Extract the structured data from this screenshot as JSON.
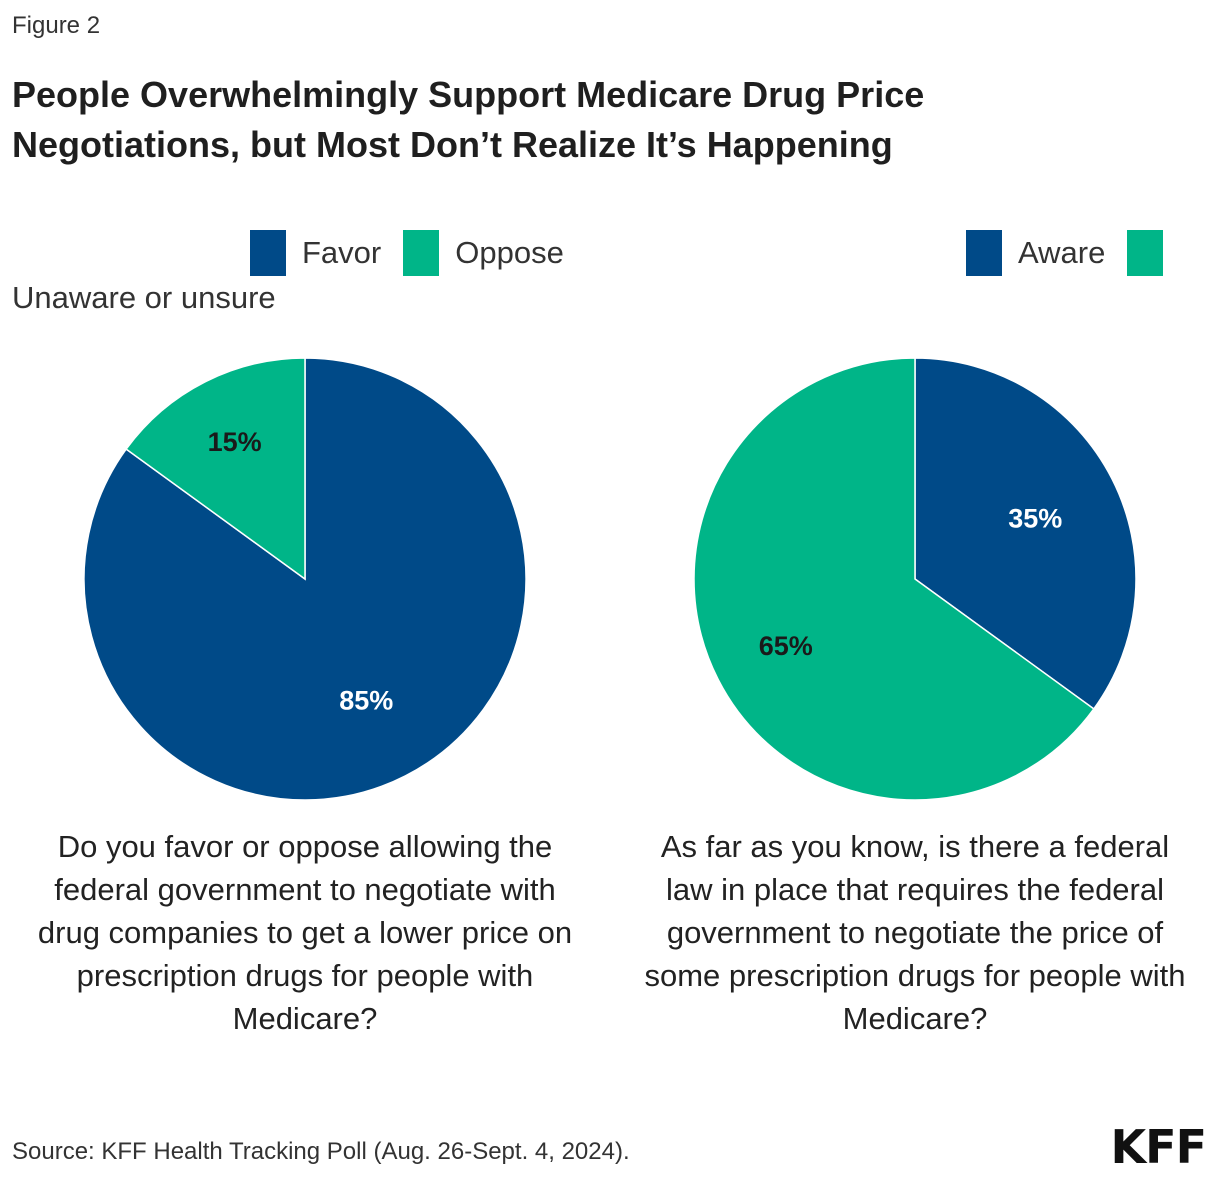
{
  "figure_label": "Figure 2",
  "title_line1": "People Overwhelmingly Support Medicare Drug Price",
  "title_line2": "Negotiations, but Most Don’t Realize It’s Happening",
  "colors": {
    "blue": "#004a88",
    "green": "#00b588",
    "label_dark": "#1a1a1a",
    "label_light": "#ffffff"
  },
  "chart_data": [
    {
      "type": "pie",
      "question": "Do you favor or oppose allowing the federal government to negotiate with drug companies to get a lower price on prescription drugs for people with Medicare?",
      "legend": [
        "Favor",
        "Oppose"
      ],
      "categories": [
        "Favor",
        "Oppose"
      ],
      "values": [
        85,
        15
      ],
      "labels": [
        "85%",
        "15%"
      ]
    },
    {
      "type": "pie",
      "question": "As far as you know, is there a federal law in place that requires the federal government to negotiate the price of some prescription drugs for people with Medicare?",
      "legend": [
        "Aware",
        "Unaware or unsure"
      ],
      "categories": [
        "Aware",
        "Unaware or unsure"
      ],
      "values": [
        35,
        65
      ],
      "labels": [
        "35%",
        "65%"
      ]
    }
  ],
  "source": "Source: KFF Health Tracking Poll (Aug. 26-Sept. 4, 2024).",
  "logo_text": "KFF"
}
